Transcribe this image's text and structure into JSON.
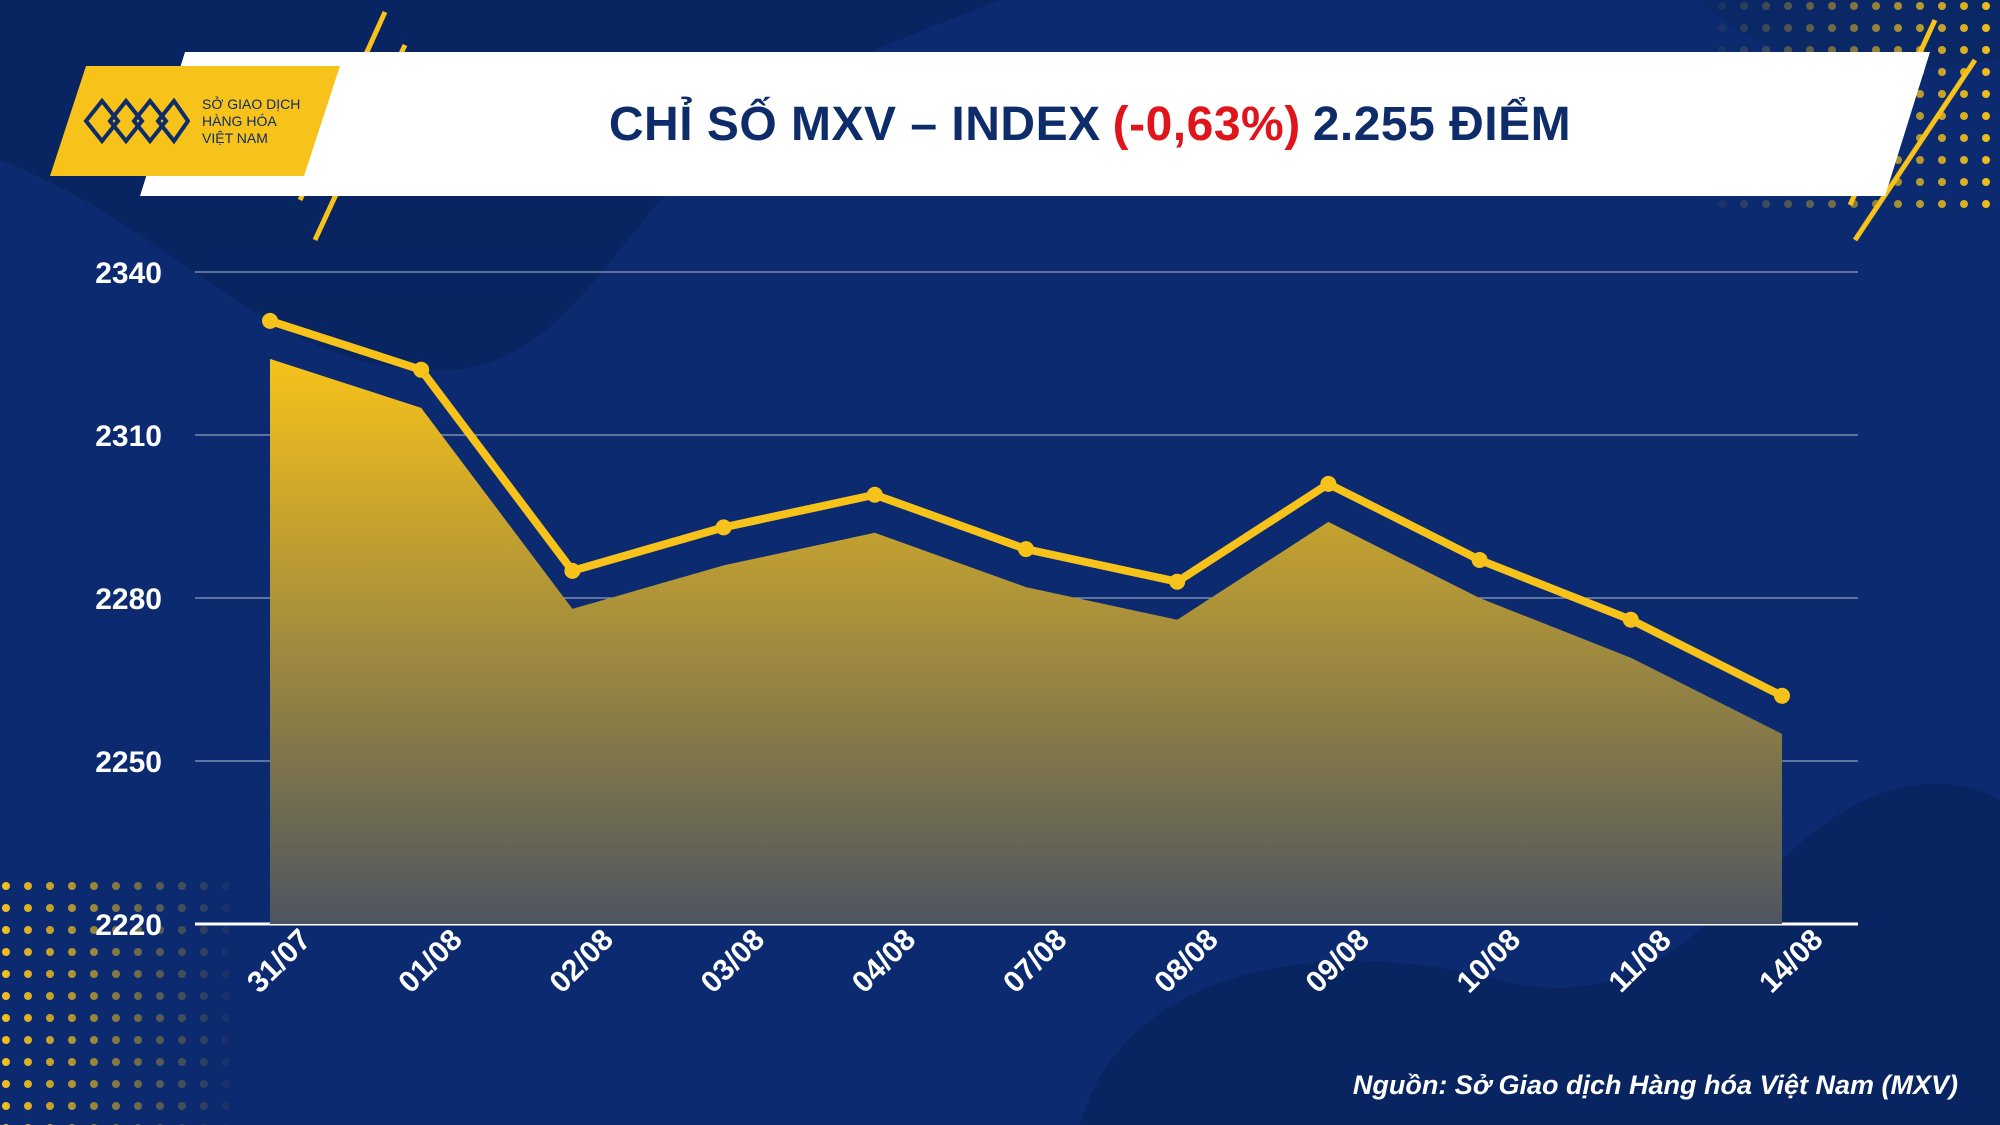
{
  "header": {
    "title_main": "CHỈ SỐ MXV – INDEX",
    "title_change": "(-0,63%)",
    "title_points": "2.255 ĐIỂM",
    "change_color": "#e0141b"
  },
  "logo": {
    "line1": "SỞ GIAO DỊCH",
    "line2": "HÀNG HÓA",
    "line3": "VIỆT NAM",
    "color": "#f7c21a"
  },
  "source": "Nguồn: Sở Giao dịch Hàng hóa Việt Nam (MXV)",
  "colors": {
    "background": "#0b2a6f",
    "line": "#f7c21a",
    "area_top": "#f7c21a",
    "area_bottom": "#4d5560"
  },
  "chart_data": {
    "type": "area",
    "categories": [
      "31/07",
      "01/08",
      "02/08",
      "03/08",
      "04/08",
      "07/08",
      "08/08",
      "09/08",
      "10/08",
      "11/08",
      "14/08"
    ],
    "series": [
      {
        "values": [
          2331,
          2322,
          2285,
          2293,
          2299,
          2289,
          2283,
          2301,
          2287,
          2276,
          2262
        ]
      },
      {
        "values": [
          2324,
          2315,
          2278,
          2286,
          2292,
          2282,
          2276,
          2294,
          2280,
          2269,
          2255
        ]
      }
    ],
    "yticks": [
      2220,
      2250,
      2280,
      2310,
      2340
    ],
    "ylim": [
      2220,
      2340
    ],
    "grid": true,
    "title": "",
    "xlabel": "",
    "ylabel": ""
  }
}
